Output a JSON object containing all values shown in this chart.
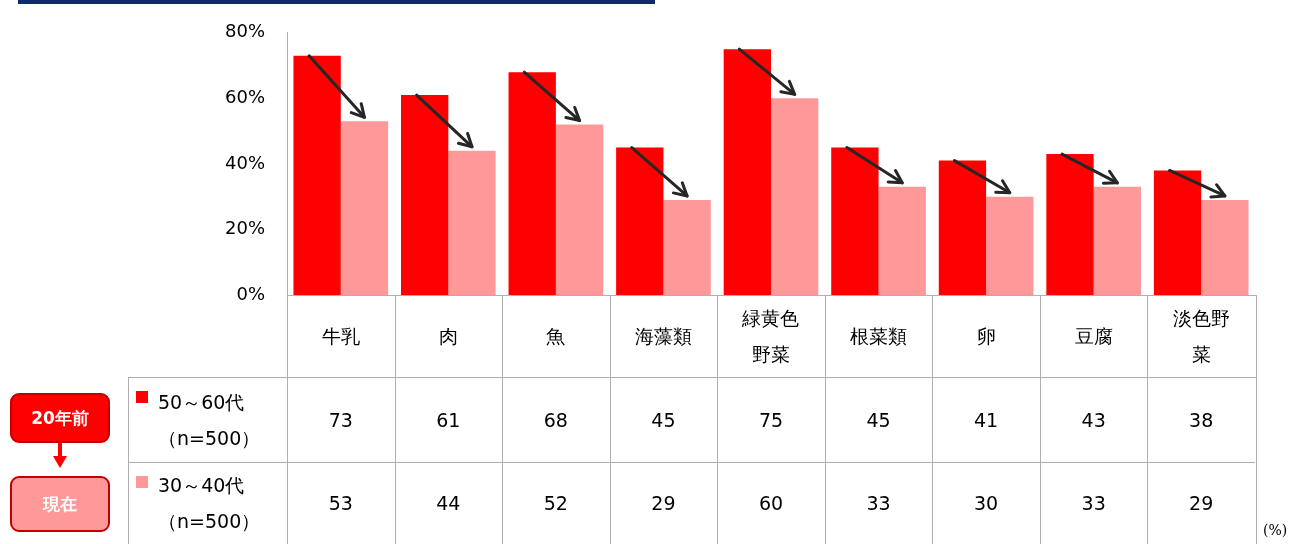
{
  "chart_data": {
    "type": "bar",
    "categories": [
      "牛乳",
      "肉",
      "魚",
      "海藻類",
      "緑黄色野菜",
      "根菜類",
      "卵",
      "豆腐",
      "淡色野菜"
    ],
    "series": [
      {
        "name": "50～60代（n=500）",
        "color": "#ff0000",
        "values": [
          73,
          61,
          68,
          45,
          75,
          45,
          41,
          43,
          38
        ]
      },
      {
        "name": "30～40代（n=500）",
        "color": "#ff9999",
        "values": [
          53,
          44,
          52,
          29,
          60,
          33,
          30,
          33,
          29
        ]
      }
    ],
    "ylim": [
      0,
      80
    ],
    "yticks": [
      {
        "value": 0,
        "label": "0%"
      },
      {
        "value": 20,
        "label": "20%"
      },
      {
        "value": 40,
        "label": "40%"
      },
      {
        "value": 60,
        "label": "60%"
      },
      {
        "value": 80,
        "label": "80%"
      }
    ],
    "grid": false,
    "legend": "bottom left",
    "data_labels": true,
    "annotations": [
      "20年前",
      "現在",
      "(%)"
    ]
  }
}
